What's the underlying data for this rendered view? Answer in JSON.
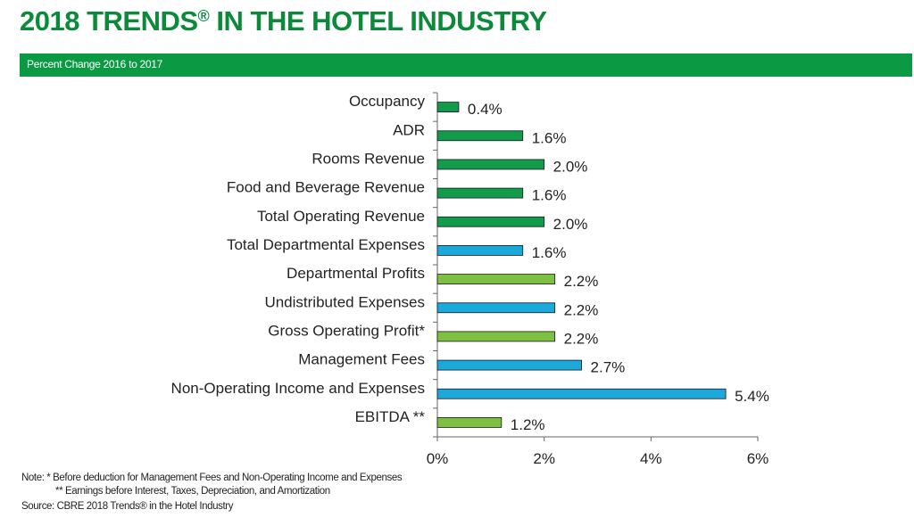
{
  "header": {
    "title": "2018 TRENDS",
    "title_mark": "®",
    "title_rest": " IN THE HOTEL INDUSTRY",
    "subtitle": "Percent Change 2016 to 2017"
  },
  "colors": {
    "title": "#0b8a3a",
    "banner": "#0b9a43",
    "dark_green": "#129b4a",
    "light_green": "#7cc142",
    "blue": "#1ba9dc"
  },
  "chart_data": {
    "type": "bar",
    "orientation": "horizontal",
    "categories": [
      "Occupancy",
      "ADR",
      "Rooms Revenue",
      "Food and Beverage Revenue",
      "Total Operating Revenue",
      "Total Departmental Expenses",
      "Departmental Profits",
      "Undistributed Expenses",
      "Gross Operating Profit*",
      "Management Fees",
      "Non-Operating Income and Expenses",
      "EBITDA **"
    ],
    "values": [
      0.4,
      1.6,
      2.0,
      1.6,
      2.0,
      1.6,
      2.2,
      2.2,
      2.2,
      2.7,
      5.4,
      1.2
    ],
    "value_labels": [
      "0.4%",
      "1.6%",
      "2.0%",
      "1.6%",
      "2.0%",
      "1.6%",
      "2.2%",
      "2.2%",
      "2.2%",
      "2.7%",
      "5.4%",
      "1.2%"
    ],
    "bar_colors": [
      "dark_green",
      "dark_green",
      "dark_green",
      "dark_green",
      "dark_green",
      "blue",
      "light_green",
      "blue",
      "light_green",
      "blue",
      "blue",
      "light_green"
    ],
    "xlim": [
      0,
      6
    ],
    "xticks": [
      0,
      2,
      4,
      6
    ],
    "xtick_labels": [
      "0%",
      "2%",
      "4%",
      "6%"
    ],
    "grid": false,
    "legend": "none"
  },
  "notes": {
    "line1": "Note: * Before deduction for Management Fees and Non-Operating Income and Expenses",
    "line2": "** Earnings before Interest, Taxes, Depreciation, and Amortization",
    "source": "Source: CBRE 2018 Trends® in the Hotel Industry"
  }
}
